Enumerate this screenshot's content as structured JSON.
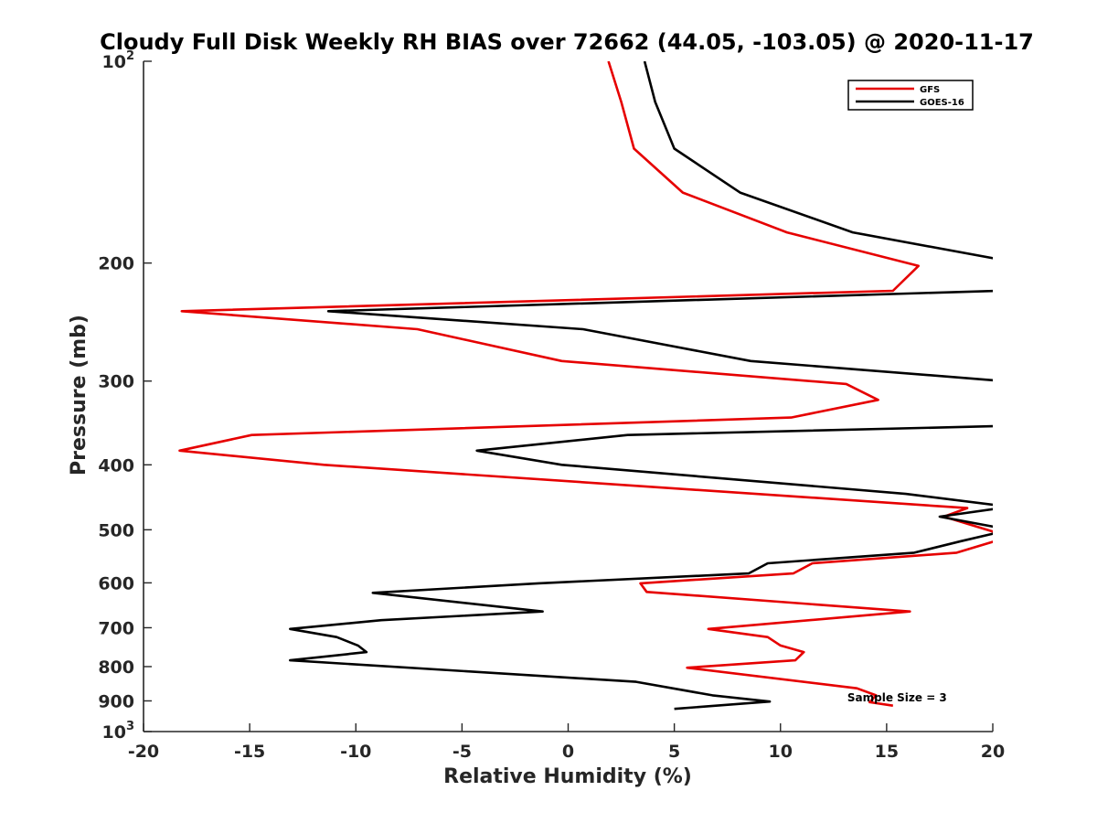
{
  "chart_data": {
    "type": "line",
    "title": "Cloudy Full Disk Weekly RH BIAS over 72662 (44.05, -103.05) @ 2020-11-17",
    "xlabel": "Relative Humidity (%)",
    "ylabel": "Pressure (mb)",
    "xlim": [
      -20,
      20
    ],
    "ylim": [
      100,
      1000
    ],
    "y_scale": "log",
    "y_reversed": true,
    "grid": false,
    "legend_position": "top-right",
    "x_ticks": [
      {
        "value": -20,
        "label": "-20"
      },
      {
        "value": -15,
        "label": "-15"
      },
      {
        "value": -10,
        "label": "-10"
      },
      {
        "value": -5,
        "label": "-5"
      },
      {
        "value": 0,
        "label": "0"
      },
      {
        "value": 5,
        "label": "5"
      },
      {
        "value": 10,
        "label": "10"
      },
      {
        "value": 15,
        "label": "15"
      },
      {
        "value": 20,
        "label": "20"
      }
    ],
    "y_ticks": [
      {
        "value": 100,
        "base": "10",
        "exp": "2"
      },
      {
        "value": 200,
        "base": "200",
        "exp": ""
      },
      {
        "value": 300,
        "base": "300",
        "exp": ""
      },
      {
        "value": 400,
        "base": "400",
        "exp": ""
      },
      {
        "value": 500,
        "base": "500",
        "exp": ""
      },
      {
        "value": 600,
        "base": "600",
        "exp": ""
      },
      {
        "value": 700,
        "base": "700",
        "exp": ""
      },
      {
        "value": 800,
        "base": "800",
        "exp": ""
      },
      {
        "value": 900,
        "base": "900",
        "exp": ""
      },
      {
        "value": 1000,
        "base": "10",
        "exp": "3"
      }
    ],
    "series": [
      {
        "name": "GFS",
        "color": "#e60000",
        "points": [
          {
            "x": 1.9,
            "y": 100
          },
          {
            "x": 2.5,
            "y": 115
          },
          {
            "x": 3.1,
            "y": 135
          },
          {
            "x": 5.4,
            "y": 157
          },
          {
            "x": 10.3,
            "y": 180
          },
          {
            "x": 16.5,
            "y": 202
          },
          {
            "x": 15.3,
            "y": 220
          },
          {
            "x": -18.2,
            "y": 236
          },
          {
            "x": -7.1,
            "y": 251
          },
          {
            "x": -0.3,
            "y": 280
          },
          {
            "x": 13.1,
            "y": 303
          },
          {
            "x": 14.6,
            "y": 320
          },
          {
            "x": 10.5,
            "y": 340
          },
          {
            "x": -14.9,
            "y": 361
          },
          {
            "x": -18.3,
            "y": 381
          },
          {
            "x": -11.5,
            "y": 400
          },
          {
            "x": 18.8,
            "y": 464
          },
          {
            "x": 17.7,
            "y": 478
          },
          {
            "x": 20.8,
            "y": 512
          },
          {
            "x": 18.3,
            "y": 541
          },
          {
            "x": 11.5,
            "y": 561
          },
          {
            "x": 10.6,
            "y": 581
          },
          {
            "x": 3.4,
            "y": 601
          },
          {
            "x": 3.7,
            "y": 619
          },
          {
            "x": 16.1,
            "y": 662
          },
          {
            "x": 6.6,
            "y": 703
          },
          {
            "x": 9.4,
            "y": 723
          },
          {
            "x": 10.0,
            "y": 744
          },
          {
            "x": 11.1,
            "y": 761
          },
          {
            "x": 10.7,
            "y": 783
          },
          {
            "x": 5.6,
            "y": 803
          },
          {
            "x": 13.6,
            "y": 862
          },
          {
            "x": 14.5,
            "y": 883
          },
          {
            "x": 14.2,
            "y": 904
          },
          {
            "x": 15.3,
            "y": 915
          }
        ]
      },
      {
        "name": "GOES-16",
        "color": "#000000",
        "points": [
          {
            "x": 3.6,
            "y": 100
          },
          {
            "x": 4.1,
            "y": 115
          },
          {
            "x": 5.0,
            "y": 135
          },
          {
            "x": 8.1,
            "y": 157
          },
          {
            "x": 13.4,
            "y": 180
          },
          {
            "x": 20.5,
            "y": 198
          },
          {
            "x": 20.2,
            "y": 220
          },
          {
            "x": -11.3,
            "y": 236
          },
          {
            "x": 0.7,
            "y": 251
          },
          {
            "x": 8.6,
            "y": 280
          },
          {
            "x": 20.5,
            "y": 300
          },
          {
            "x": 20.5,
            "y": 350
          },
          {
            "x": 2.8,
            "y": 361
          },
          {
            "x": -4.3,
            "y": 381
          },
          {
            "x": -0.3,
            "y": 400
          },
          {
            "x": 15.9,
            "y": 442
          },
          {
            "x": 20.8,
            "y": 462
          },
          {
            "x": 17.5,
            "y": 478
          },
          {
            "x": 20.8,
            "y": 500
          },
          {
            "x": 18.5,
            "y": 520
          },
          {
            "x": 16.3,
            "y": 541
          },
          {
            "x": 9.4,
            "y": 561
          },
          {
            "x": 8.5,
            "y": 581
          },
          {
            "x": -1.4,
            "y": 601
          },
          {
            "x": -9.2,
            "y": 621
          },
          {
            "x": -1.2,
            "y": 662
          },
          {
            "x": -8.8,
            "y": 682
          },
          {
            "x": -13.1,
            "y": 703
          },
          {
            "x": -10.9,
            "y": 723
          },
          {
            "x": -9.9,
            "y": 744
          },
          {
            "x": -9.5,
            "y": 761
          },
          {
            "x": -13.1,
            "y": 783
          },
          {
            "x": 3.2,
            "y": 843
          },
          {
            "x": 6.8,
            "y": 883
          },
          {
            "x": 9.5,
            "y": 902
          },
          {
            "x": 5.0,
            "y": 925
          }
        ]
      }
    ],
    "annotations": [
      {
        "text": "Sample Size = 3",
        "x": 15.0,
        "y": 925
      }
    ]
  }
}
